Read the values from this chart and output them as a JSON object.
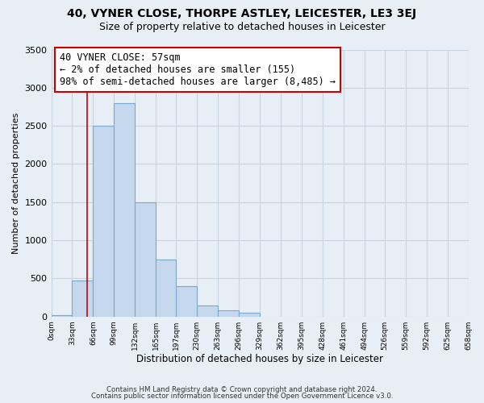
{
  "title": "40, VYNER CLOSE, THORPE ASTLEY, LEICESTER, LE3 3EJ",
  "subtitle": "Size of property relative to detached houses in Leicester",
  "xlabel": "Distribution of detached houses by size in Leicester",
  "ylabel": "Number of detached properties",
  "bin_edges": [
    0,
    33,
    66,
    99,
    132,
    165,
    197,
    230,
    263,
    296,
    329,
    362,
    395,
    428,
    461,
    494,
    526,
    559,
    592,
    625,
    658
  ],
  "bin_labels": [
    "0sqm",
    "33sqm",
    "66sqm",
    "99sqm",
    "132sqm",
    "165sqm",
    "197sqm",
    "230sqm",
    "263sqm",
    "296sqm",
    "329sqm",
    "362sqm",
    "395sqm",
    "428sqm",
    "461sqm",
    "494sqm",
    "526sqm",
    "559sqm",
    "592sqm",
    "625sqm",
    "658sqm"
  ],
  "bar_heights": [
    20,
    475,
    2500,
    2800,
    1500,
    750,
    400,
    150,
    80,
    50,
    0,
    0,
    0,
    0,
    0,
    0,
    0,
    0,
    0,
    0
  ],
  "bar_color": "#c5d8ee",
  "bar_edgecolor": "#7aaac8",
  "property_value": 57,
  "property_line_color": "#cc0000",
  "annotation_text": "40 VYNER CLOSE: 57sqm\n← 2% of detached houses are smaller (155)\n98% of semi-detached houses are larger (8,485) →",
  "annotation_box_edgecolor": "#cc0000",
  "annotation_box_facecolor": "#ffffff",
  "ylim": [
    0,
    3500
  ],
  "footer_line1": "Contains HM Land Registry data © Crown copyright and database right 2024.",
  "footer_line2": "Contains public sector information licensed under the Open Government Licence v3.0.",
  "bg_color": "#e8eef5",
  "plot_bg_color": "#e8eef5",
  "grid_color": "#c8d4e0",
  "title_fontsize": 10,
  "subtitle_fontsize": 9
}
